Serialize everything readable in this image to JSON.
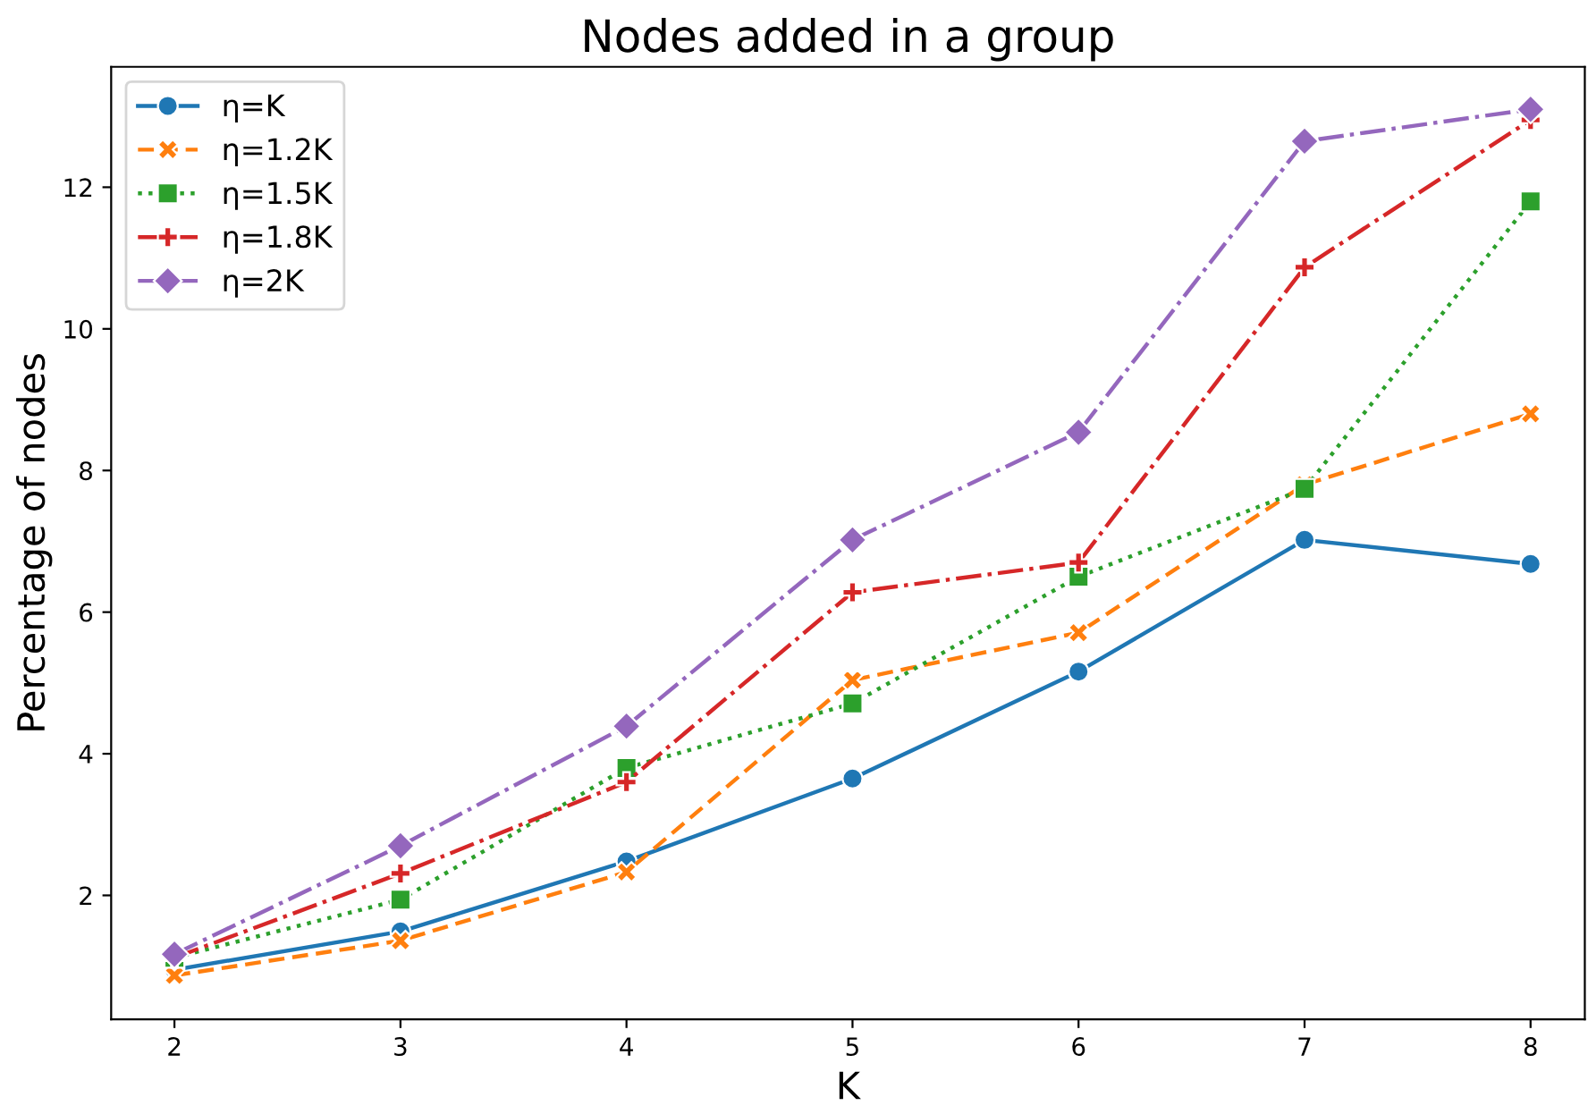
{
  "chart_data": {
    "type": "line",
    "title": "Nodes added in a group",
    "xlabel": "K",
    "ylabel": "Percentage of nodes",
    "x": [
      2,
      3,
      4,
      5,
      6,
      7,
      8
    ],
    "series": [
      {
        "name": "η=K",
        "color": "#1f77b4",
        "marker": "circle",
        "line_style": "solid",
        "values": [
          0.95,
          1.49,
          2.48,
          3.65,
          5.16,
          7.02,
          6.68
        ]
      },
      {
        "name": "η=1.2K",
        "color": "#ff7f0e",
        "marker": "cross",
        "line_style": "dashed",
        "values": [
          0.87,
          1.36,
          2.33,
          5.04,
          5.71,
          7.8,
          8.8
        ]
      },
      {
        "name": "η=1.5K",
        "color": "#2ca02c",
        "marker": "square",
        "line_style": "dotted",
        "values": [
          1.12,
          1.94,
          3.8,
          4.71,
          6.5,
          7.74,
          11.8
        ]
      },
      {
        "name": "η=1.8K",
        "color": "#d62728",
        "marker": "plus",
        "line_style": "dashdot",
        "values": [
          1.12,
          2.31,
          3.6,
          6.28,
          6.7,
          10.87,
          12.95
        ]
      },
      {
        "name": "η=2K",
        "color": "#9467bd",
        "marker": "diamond",
        "line_style": "dashdot",
        "values": [
          1.17,
          2.7,
          4.39,
          7.02,
          8.54,
          12.65,
          13.1
        ]
      }
    ],
    "xlim": [
      1.72,
      8.24
    ],
    "ylim": [
      0.25,
      13.7
    ],
    "xticks": [
      2,
      3,
      4,
      5,
      6,
      7,
      8
    ],
    "yticks": [
      2,
      4,
      6,
      8,
      10,
      12
    ],
    "grid": false,
    "legend": "top left"
  }
}
